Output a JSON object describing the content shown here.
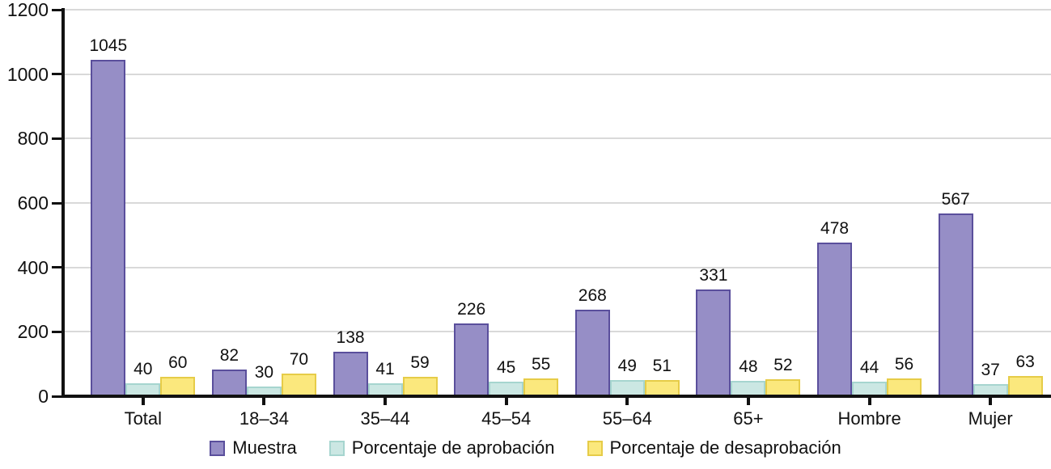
{
  "chart_data": {
    "type": "bar",
    "title": "",
    "xlabel": "",
    "ylabel": "",
    "categories": [
      "Total",
      "18–34",
      "35–44",
      "45–54",
      "55–64",
      "65+",
      "Hombre",
      "Mujer"
    ],
    "series": [
      {
        "name": "Muestra",
        "color": "#968ec6",
        "border_color": "#5a4f9c",
        "values": [
          1045,
          82,
          138,
          226,
          268,
          331,
          478,
          567
        ]
      },
      {
        "name": "Porcentaje de aprobación",
        "color": "#cbe7e3",
        "border_color": "#a6d5cf",
        "values": [
          40,
          30,
          41,
          45,
          49,
          48,
          44,
          37
        ]
      },
      {
        "name": "Porcentaje de desaprobación",
        "color": "#fbe87d",
        "border_color": "#e6cc48",
        "values": [
          60,
          70,
          59,
          55,
          51,
          52,
          56,
          63
        ]
      }
    ],
    "ylim": [
      0,
      1200
    ],
    "yticks": [
      0,
      200,
      400,
      600,
      800,
      1000,
      1200
    ],
    "grid": true,
    "legend_position": "bottom",
    "data_labels": true,
    "axis_color": "#111111",
    "grid_color": "#d9d9d9"
  }
}
